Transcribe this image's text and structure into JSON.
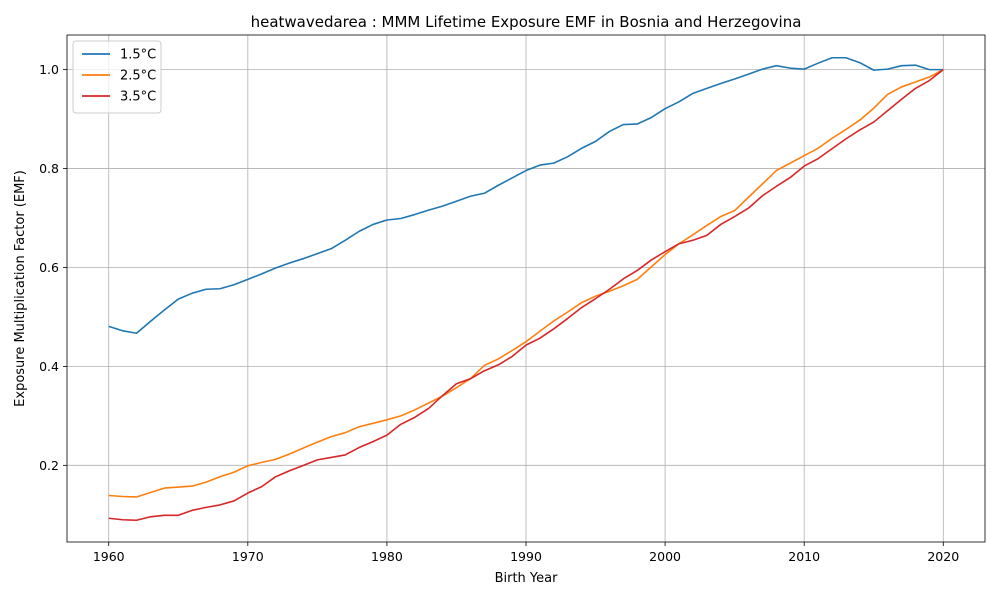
{
  "chart_data": {
    "type": "line",
    "title": "heatwavedarea : MMM Lifetime Exposure EMF in Bosnia and Herzegovina",
    "xlabel": "Birth Year",
    "ylabel": "Exposure Multiplication Factor (EMF)",
    "xlim": [
      1957,
      2023
    ],
    "ylim": [
      0.045,
      1.07
    ],
    "xticks": [
      1960,
      1970,
      1980,
      1990,
      2000,
      2010,
      2020
    ],
    "yticks": [
      0.2,
      0.4,
      0.6,
      0.8,
      1.0
    ],
    "xtick_labels": [
      "1960",
      "1970",
      "1980",
      "1990",
      "2000",
      "2010",
      "2020"
    ],
    "ytick_labels": [
      "0.2",
      "0.4",
      "0.6",
      "0.8",
      "1.0"
    ],
    "grid": true,
    "legend_position": "top-left",
    "x": [
      1960,
      1961,
      1962,
      1963,
      1964,
      1965,
      1966,
      1967,
      1968,
      1969,
      1970,
      1971,
      1972,
      1973,
      1974,
      1975,
      1976,
      1977,
      1978,
      1979,
      1980,
      1981,
      1982,
      1983,
      1984,
      1985,
      1986,
      1987,
      1988,
      1989,
      1990,
      1991,
      1992,
      1993,
      1994,
      1995,
      1996,
      1997,
      1998,
      1999,
      2000,
      2001,
      2002,
      2003,
      2004,
      2005,
      2006,
      2007,
      2008,
      2009,
      2010,
      2011,
      2012,
      2013,
      2014,
      2015,
      2016,
      2017,
      2018,
      2019,
      2020
    ],
    "series": [
      {
        "name": "1.5°C",
        "color": "#1f77b4",
        "values": [
          0.481,
          0.472,
          0.467,
          0.491,
          0.514,
          0.536,
          0.548,
          0.556,
          0.557,
          0.565,
          0.576,
          0.587,
          0.599,
          0.609,
          0.618,
          0.628,
          0.638,
          0.655,
          0.673,
          0.687,
          0.696,
          0.699,
          0.707,
          0.716,
          0.724,
          0.734,
          0.744,
          0.75,
          0.766,
          0.781,
          0.796,
          0.807,
          0.811,
          0.824,
          0.841,
          0.855,
          0.875,
          0.889,
          0.89,
          0.903,
          0.921,
          0.935,
          0.952,
          0.962,
          0.972,
          0.981,
          0.991,
          1.001,
          1.008,
          1.003,
          1.001,
          1.013,
          1.024,
          1.024,
          1.014,
          0.999,
          1.001,
          1.008,
          1.009,
          1.0,
          1.0
        ]
      },
      {
        "name": "2.5°C",
        "color": "#ff7f0e",
        "values": [
          0.139,
          0.137,
          0.136,
          0.145,
          0.154,
          0.156,
          0.158,
          0.166,
          0.177,
          0.186,
          0.199,
          0.206,
          0.212,
          0.223,
          0.235,
          0.247,
          0.258,
          0.266,
          0.278,
          0.285,
          0.292,
          0.3,
          0.312,
          0.326,
          0.34,
          0.357,
          0.375,
          0.402,
          0.415,
          0.432,
          0.45,
          0.471,
          0.492,
          0.51,
          0.529,
          0.542,
          0.552,
          0.563,
          0.576,
          0.601,
          0.626,
          0.648,
          0.666,
          0.685,
          0.703,
          0.715,
          0.742,
          0.769,
          0.796,
          0.811,
          0.826,
          0.841,
          0.861,
          0.879,
          0.898,
          0.922,
          0.95,
          0.965,
          0.975,
          0.985,
          1.0
        ]
      },
      {
        "name": "3.5°C",
        "color": "#d62728",
        "values": [
          0.093,
          0.09,
          0.089,
          0.096,
          0.099,
          0.099,
          0.109,
          0.115,
          0.12,
          0.128,
          0.144,
          0.157,
          0.177,
          0.189,
          0.2,
          0.211,
          0.216,
          0.221,
          0.236,
          0.248,
          0.261,
          0.283,
          0.297,
          0.315,
          0.341,
          0.365,
          0.375,
          0.391,
          0.403,
          0.42,
          0.443,
          0.457,
          0.476,
          0.497,
          0.519,
          0.537,
          0.556,
          0.577,
          0.594,
          0.615,
          0.632,
          0.648,
          0.655,
          0.665,
          0.687,
          0.703,
          0.72,
          0.745,
          0.764,
          0.782,
          0.805,
          0.82,
          0.84,
          0.86,
          0.878,
          0.894,
          0.917,
          0.94,
          0.962,
          0.978,
          1.0
        ]
      }
    ]
  }
}
